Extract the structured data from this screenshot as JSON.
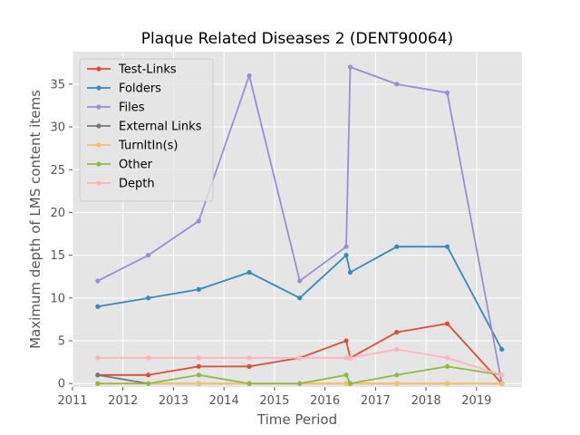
{
  "chart_data": {
    "type": "line",
    "title": "Plaque Related Diseases 2 (DENT90064)",
    "xlabel": "Time Period",
    "ylabel": "Maximum depth of LMS content items",
    "xlim": [
      2011.0,
      2019.9
    ],
    "ylim": [
      -0.4,
      38.8
    ],
    "xticks": [
      2011,
      2012,
      2013,
      2014,
      2015,
      2016,
      2017,
      2018,
      2019
    ],
    "yticks": [
      0,
      5,
      10,
      15,
      20,
      25,
      30,
      35
    ],
    "grid": true,
    "legend_position": "upper-left",
    "series": [
      {
        "name": "Test-Links",
        "color": "#e24a33",
        "points": [
          [
            2011.5,
            1
          ],
          [
            2012.5,
            1
          ],
          [
            2013.5,
            2
          ],
          [
            2014.5,
            2
          ],
          [
            2015.5,
            3
          ],
          [
            2016.42,
            5
          ],
          [
            2016.5,
            3
          ],
          [
            2017.42,
            6
          ],
          [
            2018.42,
            7
          ],
          [
            2019.5,
            0
          ]
        ]
      },
      {
        "name": "Folders",
        "color": "#348abd",
        "points": [
          [
            2011.5,
            9
          ],
          [
            2012.5,
            10
          ],
          [
            2013.5,
            11
          ],
          [
            2014.5,
            13
          ],
          [
            2015.5,
            10
          ],
          [
            2016.42,
            15
          ],
          [
            2016.5,
            13
          ],
          [
            2017.42,
            16
          ],
          [
            2018.42,
            16
          ],
          [
            2019.5,
            4
          ]
        ]
      },
      {
        "name": "Files",
        "color": "#988ed5",
        "points": [
          [
            2011.5,
            12
          ],
          [
            2012.5,
            15
          ],
          [
            2013.5,
            19
          ],
          [
            2014.5,
            36
          ],
          [
            2015.5,
            12
          ],
          [
            2016.42,
            16
          ],
          [
            2016.5,
            37
          ],
          [
            2017.42,
            35
          ],
          [
            2018.42,
            34
          ],
          [
            2019.5,
            0
          ]
        ]
      },
      {
        "name": "External Links",
        "color": "#777777",
        "points": [
          [
            2011.5,
            1
          ],
          [
            2012.5,
            0
          ],
          [
            2013.5,
            0
          ],
          [
            2014.5,
            0
          ],
          [
            2015.5,
            0
          ],
          [
            2016.42,
            0
          ],
          [
            2016.5,
            0
          ],
          [
            2017.42,
            0
          ],
          [
            2018.42,
            0
          ],
          [
            2019.5,
            0
          ]
        ]
      },
      {
        "name": "TurnItIn(s)",
        "color": "#fbc15e",
        "points": [
          [
            2011.5,
            0
          ],
          [
            2012.5,
            0
          ],
          [
            2013.5,
            0
          ],
          [
            2014.5,
            0
          ],
          [
            2015.5,
            0
          ],
          [
            2016.42,
            0
          ],
          [
            2016.5,
            0
          ],
          [
            2017.42,
            0
          ],
          [
            2018.42,
            0
          ],
          [
            2019.5,
            0
          ]
        ]
      },
      {
        "name": "Other",
        "color": "#8eba42",
        "points": [
          [
            2011.5,
            0
          ],
          [
            2012.5,
            0
          ],
          [
            2013.5,
            1
          ],
          [
            2014.5,
            0
          ],
          [
            2015.5,
            0
          ],
          [
            2016.42,
            1
          ],
          [
            2016.5,
            0
          ],
          [
            2017.42,
            1
          ],
          [
            2018.42,
            2
          ],
          [
            2019.5,
            1
          ]
        ]
      },
      {
        "name": "Depth",
        "color": "#ffb5b8",
        "points": [
          [
            2011.5,
            3
          ],
          [
            2012.5,
            3
          ],
          [
            2013.5,
            3
          ],
          [
            2014.5,
            3
          ],
          [
            2015.5,
            3
          ],
          [
            2016.42,
            3
          ],
          [
            2016.5,
            3
          ],
          [
            2017.42,
            4
          ],
          [
            2018.42,
            3
          ],
          [
            2019.5,
            1
          ]
        ]
      }
    ]
  }
}
